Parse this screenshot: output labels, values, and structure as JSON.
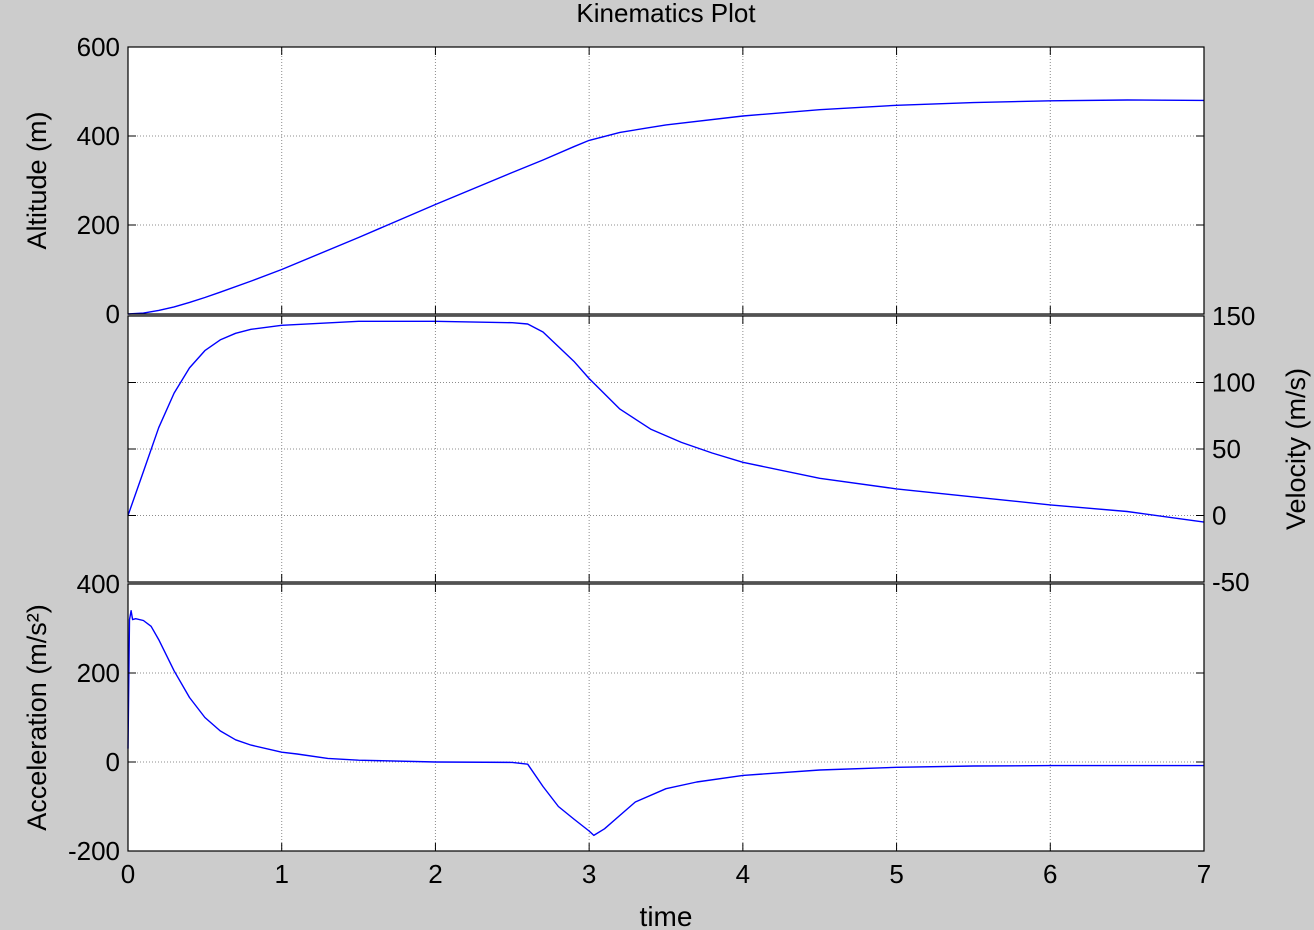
{
  "chart_data": {
    "title": "Kinematics Plot",
    "xlabel": "time",
    "xlim": [
      0,
      7
    ],
    "xticks": [
      0,
      1,
      2,
      3,
      4,
      5,
      6,
      7
    ],
    "grid": true,
    "panels": [
      {
        "type": "line",
        "ylabel": "Altitude (m)",
        "ylabel_side": "left",
        "ylim": [
          0,
          600
        ],
        "yticks": [
          0,
          200,
          400,
          600
        ],
        "color": "#0000ff",
        "series": [
          {
            "x": [
              0,
              0.1,
              0.2,
              0.3,
              0.4,
              0.5,
              0.6,
              0.8,
              1.0,
              1.5,
              2.0,
              2.5,
              2.7,
              2.9,
              3.0,
              3.2,
              3.5,
              4.0,
              4.5,
              5.0,
              5.5,
              6.0,
              6.5,
              7.0
            ],
            "y": [
              0,
              2,
              8,
              16,
              26,
              37,
              49,
              74,
              100,
              172,
              246,
              318,
              346,
              376,
              390,
              408,
              425,
              445,
              459,
              469,
              475,
              479,
              481,
              480
            ]
          }
        ]
      },
      {
        "type": "line",
        "ylabel": "Velocity (m/s)",
        "ylabel_side": "right",
        "ylim": [
          -50,
          150
        ],
        "yticks": [
          -50,
          0,
          50,
          100,
          150
        ],
        "color": "#0000ff",
        "series": [
          {
            "x": [
              0,
              0.1,
              0.2,
              0.3,
              0.4,
              0.5,
              0.6,
              0.7,
              0.8,
              1.0,
              1.5,
              2.0,
              2.5,
              2.6,
              2.7,
              2.8,
              2.9,
              3.0,
              3.2,
              3.4,
              3.6,
              3.8,
              4.0,
              4.5,
              5.0,
              5.5,
              6.0,
              6.5,
              7.0
            ],
            "y": [
              0,
              33,
              66,
              92,
              111,
              124,
              132,
              137,
              140,
              143,
              146,
              146,
              145,
              144,
              138,
              127,
              116,
              103,
              80,
              65,
              55,
              47,
              40,
              28,
              20,
              14,
              8,
              3,
              -5
            ]
          }
        ]
      },
      {
        "type": "line",
        "ylabel": "Acceleration (m/s²)",
        "ylabel_side": "left",
        "ylim": [
          -200,
          400
        ],
        "yticks": [
          -200,
          0,
          200,
          400
        ],
        "color": "#0000ff",
        "series": [
          {
            "x": [
              0,
              0.01,
              0.02,
              0.03,
              0.05,
              0.1,
              0.15,
              0.2,
              0.3,
              0.4,
              0.5,
              0.6,
              0.7,
              0.8,
              1.0,
              1.1,
              1.3,
              1.5,
              2.0,
              2.5,
              2.6,
              2.7,
              2.8,
              2.9,
              3.0,
              3.03,
              3.1,
              3.2,
              3.3,
              3.5,
              3.7,
              4.0,
              4.5,
              5.0,
              5.5,
              6.0,
              6.5,
              7.0
            ],
            "y": [
              30,
              320,
              340,
              320,
              322,
              318,
              305,
              275,
              205,
              145,
              100,
              70,
              50,
              38,
              22,
              18,
              8,
              4,
              0,
              -1,
              -5,
              -55,
              -100,
              -128,
              -155,
              -165,
              -150,
              -120,
              -90,
              -60,
              -45,
              -30,
              -18,
              -12,
              -9,
              -8,
              -8,
              -8
            ]
          }
        ]
      }
    ]
  }
}
